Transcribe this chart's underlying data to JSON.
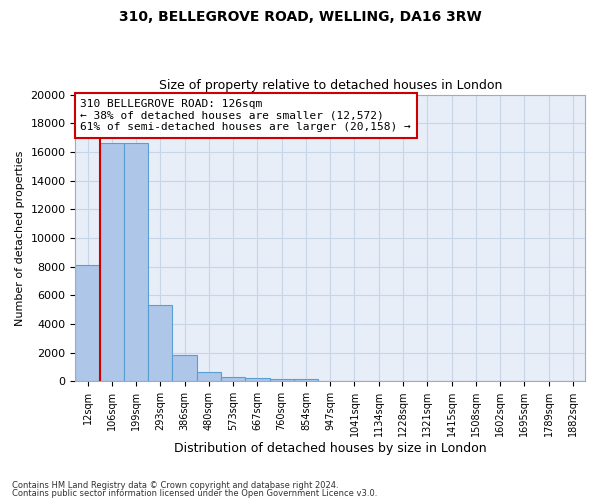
{
  "title1": "310, BELLEGROVE ROAD, WELLING, DA16 3RW",
  "title2": "Size of property relative to detached houses in London",
  "xlabel": "Distribution of detached houses by size in London",
  "ylabel": "Number of detached properties",
  "bar_color": "#aec6e8",
  "bar_edge_color": "#5a9fd4",
  "grid_color": "#c8d4e8",
  "bg_color": "#e8eef8",
  "annotation_box_color": "#cc0000",
  "red_line_color": "#cc0000",
  "categories": [
    "12sqm",
    "106sqm",
    "199sqm",
    "293sqm",
    "386sqm",
    "480sqm",
    "573sqm",
    "667sqm",
    "760sqm",
    "854sqm",
    "947sqm",
    "1041sqm",
    "1134sqm",
    "1228sqm",
    "1321sqm",
    "1415sqm",
    "1508sqm",
    "1602sqm",
    "1695sqm",
    "1789sqm",
    "1882sqm"
  ],
  "bar_heights": [
    8100,
    16600,
    16600,
    5300,
    1800,
    650,
    300,
    220,
    170,
    130,
    0,
    0,
    0,
    0,
    0,
    0,
    0,
    0,
    0,
    0,
    0
  ],
  "ylim": [
    0,
    20000
  ],
  "yticks": [
    0,
    2000,
    4000,
    6000,
    8000,
    10000,
    12000,
    14000,
    16000,
    18000,
    20000
  ],
  "annotation_text": "310 BELLEGROVE ROAD: 126sqm\n← 38% of detached houses are smaller (12,572)\n61% of semi-detached houses are larger (20,158) →",
  "footer1": "Contains HM Land Registry data © Crown copyright and database right 2024.",
  "footer2": "Contains public sector information licensed under the Open Government Licence v3.0."
}
